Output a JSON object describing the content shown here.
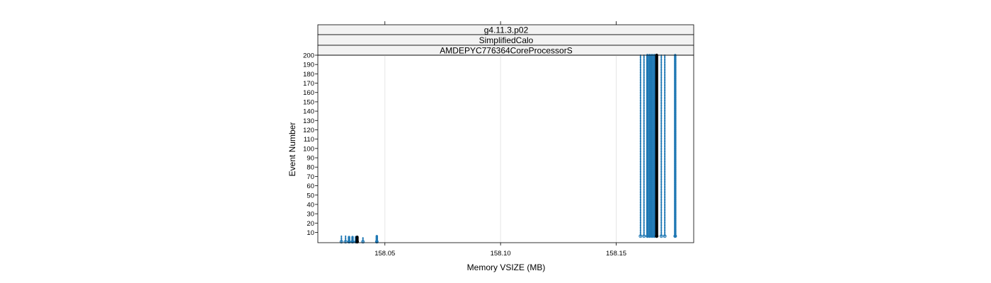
{
  "chart_data": {
    "type": "scatter",
    "strips": [
      "g4.11.3.p02",
      "SimplifiedCalo",
      "AMDEPYC776364CoreProcessorS"
    ],
    "xlabel": "Memory VSIZE (MB)",
    "ylabel": "Event Number",
    "xlim": [
      158.021,
      158.1835
    ],
    "ylim": [
      -1,
      200
    ],
    "x_ticks": [
      158.05,
      158.1,
      158.15
    ],
    "x_tick_labels": [
      "158.05",
      "158.10",
      "158.15"
    ],
    "y_ticks": [
      10,
      20,
      30,
      40,
      50,
      60,
      70,
      80,
      90,
      100,
      110,
      120,
      130,
      140,
      150,
      160,
      170,
      180,
      190,
      200
    ],
    "y_tick_labels": [
      "10",
      "20",
      "30",
      "40",
      "50",
      "60",
      "70",
      "80",
      "90",
      "100",
      "110",
      "120",
      "130",
      "140",
      "150",
      "160",
      "170",
      "180",
      "190",
      "200"
    ],
    "grid": true,
    "colors": {
      "points": "#1f78b4",
      "highlight": "#000000",
      "strip_bg": "#f2f2f2",
      "grid": "#e6e6e6"
    },
    "series": [
      {
        "color": "#1f78b4",
        "points": [
          {
            "x": 158.0312,
            "y_range": [
              0,
              6
            ],
            "style": "dashed"
          },
          {
            "x": 158.033,
            "y_range": [
              0,
              6
            ],
            "style": "dashed"
          },
          {
            "x": 158.0345,
            "y_range": [
              0,
              5
            ],
            "style": "dense"
          },
          {
            "x": 158.036,
            "y_range": [
              0,
              5
            ],
            "style": "dense"
          },
          {
            "x": 158.0375,
            "y_range": [
              0,
              5
            ],
            "style": "dense"
          },
          {
            "x": 158.0405,
            "y_range": [
              0,
              5
            ],
            "style": "dashed"
          },
          {
            "x": 158.0465,
            "y_range": [
              0,
              6
            ],
            "style": "dense"
          },
          {
            "x": 158.1605,
            "y_range": [
              6,
              200
            ],
            "style": "dashed"
          },
          {
            "x": 158.162,
            "y_range": [
              6,
              200
            ],
            "style": "dashed"
          },
          {
            "x": 158.1635,
            "y_range": [
              6,
              200
            ],
            "style": "dense"
          },
          {
            "x": 158.1645,
            "y_range": [
              6,
              200
            ],
            "style": "dense"
          },
          {
            "x": 158.1655,
            "y_range": [
              6,
              200
            ],
            "style": "dense"
          },
          {
            "x": 158.1665,
            "y_range": [
              6,
              200
            ],
            "style": "dense"
          },
          {
            "x": 158.1695,
            "y_range": [
              6,
              200
            ],
            "style": "dashed"
          },
          {
            "x": 158.171,
            "y_range": [
              6,
              200
            ],
            "style": "dashed"
          },
          {
            "x": 158.1755,
            "y_range": [
              6,
              200
            ],
            "style": "dense"
          }
        ]
      },
      {
        "color": "#000000",
        "points": [
          {
            "x": 158.038,
            "y_range": [
              0,
              5
            ],
            "style": "solid"
          },
          {
            "x": 158.1675,
            "y_range": [
              6,
              200
            ],
            "style": "solid"
          }
        ]
      }
    ]
  }
}
